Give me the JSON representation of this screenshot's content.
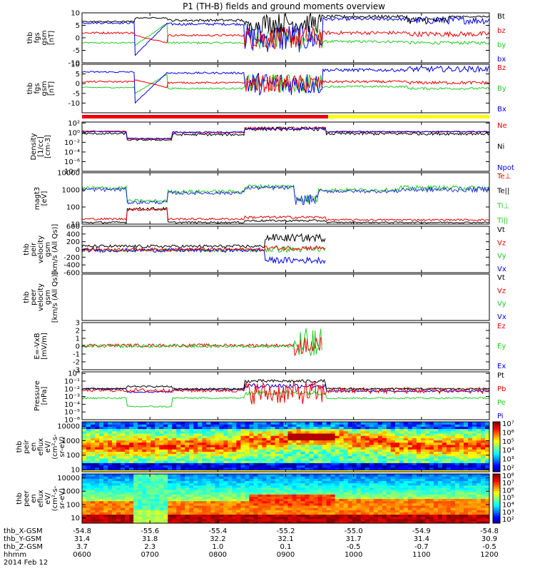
{
  "title": "P1 (TH-B) fields and ground moments overview",
  "colors": {
    "black": "#000000",
    "red": "#ee0000",
    "green": "#22cc22",
    "blue": "#0000ee",
    "yellow": "#ffff00"
  },
  "chart_data": [
    {
      "type": "line",
      "id": "fgs",
      "ylabel": [
        "thb",
        "fgs",
        "gsm",
        "[nT]"
      ],
      "ylim": [
        -10,
        10
      ],
      "yticks": [
        {
          "v": 10,
          "label": "10"
        },
        {
          "v": 5,
          "label": "5"
        },
        {
          "v": 0,
          "label": "0"
        },
        {
          "v": -5,
          "label": "-5"
        },
        {
          "v": -10,
          "label": "-10"
        }
      ],
      "series": [
        {
          "name": "Bt",
          "color": "#000000"
        },
        {
          "name": "bz",
          "color": "#ee0000"
        },
        {
          "name": "by",
          "color": "#22cc22"
        },
        {
          "name": "bx",
          "color": "#0000ee"
        }
      ]
    },
    {
      "type": "line",
      "id": "fgs2",
      "ylabel": [
        "thb",
        "fgs",
        "gsm",
        "[nT]"
      ],
      "ylim": [
        -15,
        10
      ],
      "yticks": [
        {
          "v": 10,
          "label": "10"
        },
        {
          "v": 5,
          "label": "5"
        },
        {
          "v": 0,
          "label": "0"
        },
        {
          "v": -5,
          "label": "-5"
        },
        {
          "v": -10,
          "label": "-10"
        }
      ],
      "series": [
        {
          "name": "Bz",
          "color": "#ee0000"
        },
        {
          "name": "By",
          "color": "#22cc22"
        },
        {
          "name": "Bx",
          "color": "#0000ee"
        }
      ]
    },
    {
      "type": "line",
      "id": "density",
      "ylabel": [
        "Density",
        "[1/cc]",
        "[cm-3]"
      ],
      "log": true,
      "ylim": [
        -8,
        2.2
      ],
      "yticks": [
        {
          "v": 2,
          "label": "10²"
        },
        {
          "v": 0,
          "label": "10⁰"
        },
        {
          "v": -2,
          "label": "10⁻²"
        },
        {
          "v": -4,
          "label": "10⁻⁴"
        },
        {
          "v": -6,
          "label": "10⁻⁶"
        },
        {
          "v": -8,
          "label": "10⁻⁸"
        }
      ],
      "series": [
        {
          "name": "Ne",
          "color": "#ee0000"
        },
        {
          "name": "Ni",
          "color": "#000000"
        },
        {
          "name": "Npot",
          "color": "#0000ee"
        }
      ]
    },
    {
      "type": "line",
      "id": "temp",
      "ylabel": [
        "magt3",
        "[eV]"
      ],
      "log": true,
      "ylim": [
        1,
        4
      ],
      "yticks": [
        {
          "v": 4,
          "label": "10000"
        },
        {
          "v": 3,
          "label": "1000"
        },
        {
          "v": 2,
          "label": "100"
        },
        {
          "v": 1,
          "label": "10"
        }
      ],
      "series": [
        {
          "name": "Te⊥",
          "color": "#ee0000"
        },
        {
          "name": "Te||",
          "color": "#000000"
        },
        {
          "name": "Ti⊥",
          "color": "#22cc22"
        },
        {
          "name": "Ti||",
          "color": "#22cc22"
        }
      ]
    },
    {
      "type": "line",
      "id": "peir",
      "ylabel": [
        "thb",
        "peir",
        "velocity",
        "gsm",
        "[km/s (All Qs)]"
      ],
      "ylim": [
        -600,
        600
      ],
      "yticks": [
        {
          "v": 600,
          "label": "600"
        },
        {
          "v": 400,
          "label": "400"
        },
        {
          "v": 200,
          "label": "200"
        },
        {
          "v": 0,
          "label": "0"
        },
        {
          "v": -200,
          "label": "-200"
        },
        {
          "v": -400,
          "label": "-400"
        },
        {
          "v": -600,
          "label": "-600"
        }
      ],
      "series": [
        {
          "name": "Vt",
          "color": "#000000"
        },
        {
          "name": "Vz",
          "color": "#ee0000"
        },
        {
          "name": "Vy",
          "color": "#22cc22"
        },
        {
          "name": "Vx",
          "color": "#0000ee"
        }
      ]
    },
    {
      "type": "line",
      "id": "peer",
      "ylabel": [
        "thb",
        "peer",
        "velocity",
        "gsm",
        "[km/s (All Qs)]"
      ],
      "ylim": [
        0,
        1
      ],
      "yticks": [],
      "series": [
        {
          "name": "Vt",
          "color": "#000000"
        },
        {
          "name": "Vz",
          "color": "#ee0000"
        },
        {
          "name": "Vy",
          "color": "#22cc22"
        },
        {
          "name": "Vx",
          "color": "#0000ee"
        }
      ]
    },
    {
      "type": "line",
      "id": "efield",
      "ylabel": [
        "E=-VxB",
        "[mV/m]"
      ],
      "ylim": [
        -3,
        3
      ],
      "yticks": [
        {
          "v": 3,
          "label": "3"
        },
        {
          "v": 2,
          "label": "2"
        },
        {
          "v": 1,
          "label": "1"
        },
        {
          "v": 0,
          "label": "0"
        },
        {
          "v": -1,
          "label": "-1"
        },
        {
          "v": -2,
          "label": "-2"
        },
        {
          "v": -3,
          "label": "-3"
        }
      ],
      "series": [
        {
          "name": "Ez",
          "color": "#ee0000"
        },
        {
          "name": "Ey",
          "color": "#22cc22"
        },
        {
          "name": "Ex",
          "color": "#0000ee"
        }
      ]
    },
    {
      "type": "line",
      "id": "pressure",
      "ylabel": [
        "Pressure",
        "[nPa]"
      ],
      "log": true,
      "ylim": [
        -6,
        0.2
      ],
      "yticks": [
        {
          "v": 0,
          "label": "10⁰"
        },
        {
          "v": -1,
          "label": "10⁻¹"
        },
        {
          "v": -2,
          "label": "10⁻²"
        },
        {
          "v": -3,
          "label": "10⁻³"
        },
        {
          "v": -4,
          "label": "10⁻⁴"
        },
        {
          "v": -5,
          "label": "10⁻⁵"
        },
        {
          "v": -6,
          "label": "10⁻⁶"
        }
      ],
      "series": [
        {
          "name": "Pt",
          "color": "#000000"
        },
        {
          "name": "Pb",
          "color": "#ee0000"
        },
        {
          "name": "Pe",
          "color": "#22cc22"
        },
        {
          "name": "Pi",
          "color": "#0000ee"
        }
      ]
    },
    {
      "type": "heatmap",
      "id": "peir_spec",
      "ylabel": [
        "thb",
        "peir",
        "en",
        "eflux",
        "eV/",
        "(cm²-s-",
        "sr-eV)"
      ],
      "log": true,
      "ylim": [
        0.85,
        4.3
      ],
      "yticks": [
        {
          "v": 4,
          "label": "10000"
        },
        {
          "v": 3,
          "label": "1000"
        },
        {
          "v": 2,
          "label": "100"
        },
        {
          "v": 1,
          "label": "10"
        }
      ],
      "colorbar": [
        "10⁷",
        "10⁶",
        "10⁵",
        "10⁴",
        "10³",
        "10²"
      ]
    },
    {
      "type": "heatmap",
      "id": "peer_spec",
      "ylabel": [
        "thb",
        "peer",
        "en",
        "eflux",
        "eV/",
        "(cm²-s-",
        "sr-eV)"
      ],
      "log": true,
      "ylim": [
        0.6,
        4.3
      ],
      "yticks": [
        {
          "v": 4,
          "label": "10000"
        },
        {
          "v": 3,
          "label": "1000"
        },
        {
          "v": 2,
          "label": "100"
        },
        {
          "v": 1,
          "label": "10"
        }
      ],
      "colorbar": [
        "10⁸",
        "10⁷",
        "10⁶",
        "10⁵",
        "10⁴",
        "10³",
        "10²"
      ]
    }
  ],
  "xaxis": {
    "rows": [
      {
        "name": "thb_X-GSM",
        "values": [
          "-54.8",
          "-55.6",
          "-55.4",
          "-55.2",
          "-55.0",
          "-54.9",
          "-54.8"
        ]
      },
      {
        "name": "thb_Y-GSM",
        "values": [
          "31.4",
          "31.8",
          "32.2",
          "32.1",
          "31.7",
          "31.4",
          "30.9"
        ]
      },
      {
        "name": "thb_Z-GSM",
        "values": [
          "3.7",
          "2.3",
          "1.0",
          "0.1",
          "-0.5",
          "-0.7",
          "-0.5"
        ]
      },
      {
        "name": "hhmm",
        "values": [
          "0600",
          "0700",
          "0800",
          "0900",
          "1000",
          "1100",
          "1200"
        ]
      }
    ],
    "date": "2014 Feb 12"
  }
}
